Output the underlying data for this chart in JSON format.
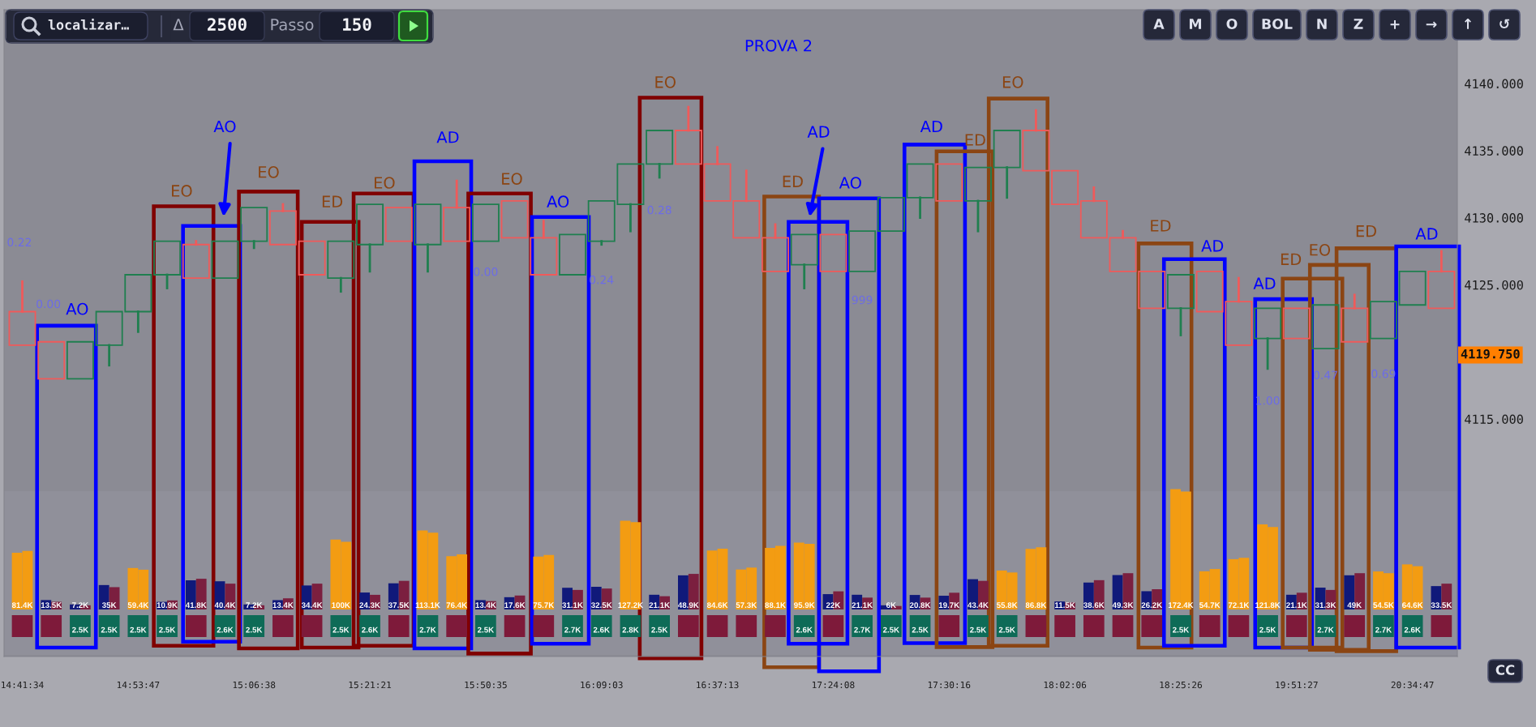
{
  "chart_data": [
    {
      "type": "candlestick",
      "title": "PROVA 2",
      "categories": [
        "14:41:34",
        null,
        null,
        null,
        "14:53:47",
        null,
        null,
        null,
        "15:06:38",
        null,
        null,
        null,
        "15:21:21",
        null,
        null,
        null,
        "15:50:35",
        null,
        null,
        null,
        "16:09:03",
        null,
        null,
        null,
        "16:37:13",
        null,
        null,
        null,
        "17:24:08",
        null,
        null,
        null,
        "17:30:16",
        null,
        null,
        null,
        "18:02:06",
        null,
        null,
        null,
        "18:25:26",
        null,
        null,
        null,
        "19:51:27",
        null,
        null,
        null,
        "20:34:47",
        null
      ],
      "ohlc": [
        [
          4123.0,
          4125.25,
          4120.5,
          4120.5
        ],
        [
          4120.75,
          4120.75,
          4118.0,
          4118.0
        ],
        [
          4118.0,
          4120.75,
          4118.0,
          4120.75
        ],
        [
          4120.5,
          4123.0,
          4119.0,
          4123.0
        ],
        [
          4123.0,
          4125.75,
          4121.5,
          4125.75
        ],
        [
          4125.75,
          4128.25,
          4124.75,
          4128.25
        ],
        [
          4128.0,
          4128.25,
          4125.5,
          4125.5
        ],
        [
          4125.5,
          4128.25,
          4125.5,
          4128.25
        ],
        [
          4128.25,
          4130.75,
          4127.75,
          4130.75
        ],
        [
          4130.5,
          4131.0,
          4128.0,
          4128.0
        ],
        [
          4128.25,
          4128.25,
          4125.75,
          4125.75
        ],
        [
          4125.5,
          4128.25,
          4124.5,
          4128.25
        ],
        [
          4128.0,
          4131.0,
          4126.0,
          4131.0
        ],
        [
          4130.75,
          4130.75,
          4128.25,
          4128.25
        ],
        [
          4128.0,
          4131.0,
          4126.0,
          4131.0
        ],
        [
          4130.75,
          4132.75,
          4128.25,
          4128.25
        ],
        [
          4128.25,
          4131.0,
          4128.25,
          4131.0
        ],
        [
          4131.25,
          4131.25,
          4128.5,
          4128.5
        ],
        [
          4128.5,
          4129.75,
          4125.75,
          4125.75
        ],
        [
          4125.75,
          4128.75,
          4125.75,
          4128.75
        ],
        [
          4128.25,
          4131.25,
          4128.0,
          4131.25
        ],
        [
          4131.0,
          4134.0,
          4129.0,
          4134.0
        ],
        [
          4134.0,
          4136.5,
          4133.0,
          4136.5
        ],
        [
          4136.5,
          4138.25,
          4134.0,
          4134.0
        ],
        [
          4134.0,
          4135.25,
          4131.25,
          4131.25
        ],
        [
          4131.25,
          4133.5,
          4128.5,
          4128.5
        ],
        [
          4128.5,
          4129.5,
          4126.0,
          4126.0
        ],
        [
          4126.5,
          4128.75,
          4124.75,
          4128.75
        ],
        [
          4128.75,
          4128.75,
          4126.0,
          4126.0
        ],
        [
          4126.0,
          4129.0,
          4126.0,
          4129.0
        ],
        [
          4129.0,
          4131.5,
          4129.0,
          4131.5
        ],
        [
          4131.5,
          4134.0,
          4130.0,
          4134.0
        ],
        [
          4134.0,
          4134.0,
          4131.25,
          4131.25
        ],
        [
          4131.25,
          4133.75,
          4129.0,
          4133.75
        ],
        [
          4133.75,
          4136.5,
          4131.5,
          4136.5
        ],
        [
          4136.5,
          4138.0,
          4133.5,
          4133.5
        ],
        [
          4133.5,
          4133.5,
          4131.0,
          4131.0
        ],
        [
          4131.25,
          4132.25,
          4128.5,
          4128.5
        ],
        [
          4128.5,
          4129.0,
          4126.0,
          4126.0
        ],
        [
          4126.0,
          4126.0,
          4123.25,
          4123.25
        ],
        [
          4123.25,
          4125.75,
          4121.25,
          4125.75
        ],
        [
          4126.0,
          4126.0,
          4123.0,
          4123.0
        ],
        [
          4123.75,
          4125.5,
          4120.5,
          4120.5
        ],
        [
          4121.0,
          4123.25,
          4118.75,
          4123.25
        ],
        [
          4123.25,
          4123.25,
          4121.0,
          4121.0
        ],
        [
          4120.25,
          4123.5,
          4120.25,
          4123.5
        ],
        [
          4123.25,
          4124.25,
          4120.75,
          4120.75
        ],
        [
          4121.0,
          4123.75,
          4121.0,
          4123.75
        ],
        [
          4123.5,
          4126.0,
          4123.5,
          4126.0
        ],
        [
          4126.0,
          4127.5,
          4123.25,
          4123.25
        ]
      ],
      "colors": [
        "#f05a5a",
        "#f05a5a",
        "#1f7f4f",
        "#1f7f4f",
        "#1f7f4f",
        "#1f7f4f",
        "#f05a5a",
        "#1f7f4f",
        "#1f7f4f",
        "#f05a5a",
        "#f05a5a",
        "#1f7f4f",
        "#1f7f4f",
        "#f05a5a",
        "#1f7f4f",
        "#f05a5a",
        "#1f7f4f",
        "#f05a5a",
        "#f05a5a",
        "#1f7f4f",
        "#1f7f4f",
        "#1f7f4f",
        "#1f7f4f",
        "#f05a5a",
        "#f05a5a",
        "#f05a5a",
        "#f05a5a",
        "#1f7f4f",
        "#f05a5a",
        "#1f7f4f",
        "#1f7f4f",
        "#1f7f4f",
        "#f05a5a",
        "#1f7f4f",
        "#1f7f4f",
        "#f05a5a",
        "#f05a5a",
        "#f05a5a",
        "#f05a5a",
        "#f05a5a",
        "#1f7f4f",
        "#f05a5a",
        "#f05a5a",
        "#1f7f4f",
        "#f05a5a",
        "#1f7f4f",
        "#f05a5a",
        "#1f7f4f",
        "#1f7f4f",
        "#f05a5a"
      ],
      "ylim": [
        4097.3,
        4145.5
      ],
      "yticks": [
        {
          "value": 4115,
          "label": "4115.000"
        },
        {
          "value": 4125,
          "label": "4125.000"
        },
        {
          "value": 4130,
          "label": "4130.000"
        },
        {
          "value": 4135,
          "label": "4135.000"
        },
        {
          "value": 4140,
          "label": "4140.000"
        }
      ],
      "annotations": [
        "AO",
        "EO",
        "AO",
        "EO",
        "ED",
        "EO",
        "AD",
        "EO",
        "AO",
        "EO",
        "ED",
        "AD",
        "AO",
        "AD",
        "ED",
        "EO",
        "ED",
        "AD",
        "AD",
        "ED",
        "EO",
        "ED",
        "AD",
        "0.22",
        "0.00",
        "0.00",
        "0.24",
        "0.28",
        "999",
        "1.00",
        "0.47",
        "0.69",
        "4119.750"
      ]
    },
    {
      "type": "bar",
      "categories": [
        null,
        null,
        null,
        null,
        null,
        null,
        null,
        null,
        null,
        null,
        null,
        null,
        null,
        null,
        null,
        null,
        null,
        null,
        null,
        null,
        null,
        null,
        null,
        null,
        null,
        null,
        null,
        null,
        null,
        null,
        null,
        null,
        null,
        null,
        null,
        null,
        null,
        null,
        null,
        null,
        null,
        null,
        null,
        null,
        null,
        null,
        null,
        null,
        null,
        null
      ],
      "series": [
        {
          "values": [
            81.4,
            13.5,
            7.2,
            35,
            59.4,
            10.9,
            41.8,
            40.4,
            7.2,
            13.4,
            34.4,
            100,
            24.3,
            37.5,
            113.1,
            76.4,
            13.4,
            17.6,
            75.7,
            31.1,
            32.5,
            127.2,
            21.1,
            48.9,
            84.6,
            57.3,
            88.1,
            95.9,
            22,
            21.1,
            6,
            20.8,
            19.7,
            43.4,
            55.8,
            86.8,
            11.5,
            38.6,
            49.3,
            26.2,
            172.4,
            54.7,
            72.1,
            121.8,
            21.1,
            31.3,
            49,
            54.5,
            64.6,
            33.5
          ],
          "colors": [
            "#f39c12",
            "#10197a",
            "#10197a",
            "#10197a",
            "#f39c12",
            "#10197a",
            "#10197a",
            "#10197a",
            "#10197a",
            "#10197a",
            "#10197a",
            "#f39c12",
            "#10197a",
            "#10197a",
            "#f39c12",
            "#f39c12",
            "#10197a",
            "#10197a",
            "#f39c12",
            "#10197a",
            "#10197a",
            "#f39c12",
            "#10197a",
            "#10197a",
            "#f39c12",
            "#f39c12",
            "#f39c12",
            "#f39c12",
            "#10197a",
            "#10197a",
            "#10197a",
            "#10197a",
            "#10197a",
            "#10197a",
            "#f39c12",
            "#f39c12",
            "#10197a",
            "#10197a",
            "#10197a",
            "#10197a",
            "#f39c12",
            "#f39c12",
            "#f39c12",
            "#f39c12",
            "#10197a",
            "#10197a",
            "#10197a",
            "#f39c12",
            "#f39c12",
            "#10197a"
          ],
          "value_labels": [
            "81.4K",
            "13.5K",
            "7.2K",
            "35K",
            "59.4K",
            "10.9K",
            "41.8K",
            "40.4K",
            "7.2K",
            "13.4K",
            "34.4K",
            "100K",
            "24.3K",
            "37.5K",
            "113.1K",
            "76.4K",
            "13.4K",
            "17.6K",
            "75.7K",
            "31.1K",
            "32.5K",
            "127.2K",
            "21.1K",
            "48.9K",
            "84.6K",
            "57.3K",
            "88.1K",
            "95.9K",
            "22K",
            "21.1K",
            "6K",
            "20.8K",
            "19.7K",
            "43.4K",
            "55.8K",
            "86.8K",
            "11.5K",
            "38.6K",
            "49.3K",
            "26.2K",
            "172.4K",
            "54.7K",
            "72.1K",
            "121.8K",
            "21.1K",
            "31.3K",
            "49K",
            "54.5K",
            "64.6K",
            "33.5K"
          ]
        },
        {
          "values": [
            84,
            11,
            6,
            32,
            57,
            13,
            44,
            37,
            6,
            16,
            37,
            97,
            21,
            41,
            110,
            79,
            12,
            20,
            78,
            28,
            30,
            125,
            19,
            51,
            87,
            60,
            91,
            94,
            26,
            17,
            5,
            17,
            24,
            41,
            53,
            89,
            10,
            42,
            52,
            29,
            169,
            58,
            74,
            118,
            24,
            28,
            52,
            52,
            62,
            37
          ],
          "colors": [
            "#f39c12",
            "#7b1f3f",
            "#7b1f3f",
            "#7b1f3f",
            "#f39c12",
            "#7b1f3f",
            "#7b1f3f",
            "#7b1f3f",
            "#7b1f3f",
            "#7b1f3f",
            "#7b1f3f",
            "#f39c12",
            "#7b1f3f",
            "#7b1f3f",
            "#f39c12",
            "#f39c12",
            "#7b1f3f",
            "#7b1f3f",
            "#f39c12",
            "#7b1f3f",
            "#7b1f3f",
            "#f39c12",
            "#7b1f3f",
            "#7b1f3f",
            "#f39c12",
            "#f39c12",
            "#f39c12",
            "#f39c12",
            "#7b1f3f",
            "#7b1f3f",
            "#7b1f3f",
            "#7b1f3f",
            "#7b1f3f",
            "#7b1f3f",
            "#f39c12",
            "#f39c12",
            "#7b1f3f",
            "#7b1f3f",
            "#7b1f3f",
            "#7b1f3f",
            "#f39c12",
            "#f39c12",
            "#f39c12",
            "#f39c12",
            "#7b1f3f",
            "#7b1f3f",
            "#7b1f3f",
            "#f39c12",
            "#f39c12",
            "#7b1f3f"
          ]
        }
      ],
      "ylim": [
        0,
        173
      ],
      "tick_labels": false
    },
    {
      "type": "other",
      "categories": [
        null,
        null,
        null,
        null,
        null,
        null,
        null,
        null,
        null,
        null,
        null,
        null,
        null,
        null,
        null,
        null,
        null,
        null,
        null,
        null,
        null,
        null,
        null,
        null,
        null,
        null,
        null,
        null,
        null,
        null,
        null,
        null,
        null,
        null,
        null,
        null,
        null,
        null,
        null,
        null,
        null,
        null,
        null,
        null,
        null,
        null,
        null,
        null,
        null,
        null
      ],
      "colors": [
        "#7e1a3a",
        "#7e1a3a",
        "#0e6b57",
        "#0e6b57",
        "#0e6b57",
        "#0e6b57",
        "#7e1a3a",
        "#0e6b57",
        "#0e6b57",
        "#7e1a3a",
        "#7e1a3a",
        "#0e6b57",
        "#0e6b57",
        "#7e1a3a",
        "#0e6b57",
        "#7e1a3a",
        "#0e6b57",
        "#7e1a3a",
        "#7e1a3a",
        "#0e6b57",
        "#0e6b57",
        "#0e6b57",
        "#0e6b57",
        "#7e1a3a",
        "#7e1a3a",
        "#7e1a3a",
        "#7e1a3a",
        "#0e6b57",
        "#7e1a3a",
        "#0e6b57",
        "#0e6b57",
        "#0e6b57",
        "#7e1a3a",
        "#0e6b57",
        "#0e6b57",
        "#7e1a3a",
        "#7e1a3a",
        "#7e1a3a",
        "#7e1a3a",
        "#7e1a3a",
        "#0e6b57",
        "#7e1a3a",
        "#7e1a3a",
        "#0e6b57",
        "#7e1a3a",
        "#0e6b57",
        "#7e1a3a",
        "#0e6b57",
        "#0e6b57",
        "#7e1a3a"
      ],
      "value_labels": [
        null,
        null,
        "2.5K",
        "2.5K",
        "2.5K",
        "2.5K",
        null,
        "2.6K",
        "2.5K",
        null,
        null,
        "2.5K",
        "2.6K",
        null,
        "2.7K",
        null,
        "2.5K",
        null,
        null,
        "2.7K",
        "2.6K",
        "2.8K",
        "2.5K",
        null,
        null,
        null,
        null,
        "2.6K",
        null,
        "2.7K",
        "2.5K",
        "2.5K",
        null,
        "2.5K",
        "2.5K",
        null,
        null,
        null,
        null,
        null,
        "2.5K",
        null,
        null,
        "2.5K",
        null,
        "2.7K",
        null,
        "2.7K",
        "2.6K",
        null
      ]
    },
    {
      "type": "other",
      "annotations": [
        "localizar…",
        "Δ",
        "2500",
        "Passo",
        "150"
      ]
    },
    {
      "type": "other",
      "annotations": [
        "A",
        "M",
        "O",
        "BOL",
        "N",
        "Z",
        "+",
        "→",
        "↑",
        "↺"
      ]
    },
    {
      "type": "other",
      "annotations": [
        "CC"
      ]
    }
  ]
}
